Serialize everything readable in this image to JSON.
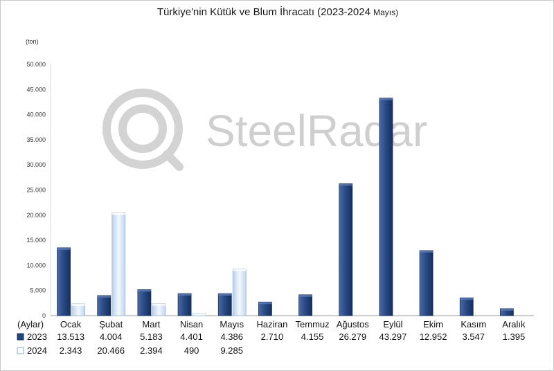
{
  "watermark": {
    "brand": "SteelRadar"
  },
  "chart_data": {
    "type": "bar",
    "title": "Türkiye'nin Kütük ve Blum İhracatı (2023-2024",
    "title_suffix": "Mayıs)",
    "ylabel": "(ton)",
    "xlabel": "(Aylar)",
    "ylim": [
      0,
      50000
    ],
    "yticks": [
      {
        "value": 0,
        "label": "0"
      },
      {
        "value": 5000,
        "label": "5.000"
      },
      {
        "value": 10000,
        "label": "10.000"
      },
      {
        "value": 15000,
        "label": "15.000"
      },
      {
        "value": 20000,
        "label": "20.000"
      },
      {
        "value": 25000,
        "label": "25.000"
      },
      {
        "value": 30000,
        "label": "30.000"
      },
      {
        "value": 35000,
        "label": "35.000"
      },
      {
        "value": 40000,
        "label": "40.000"
      },
      {
        "value": 45000,
        "label": "45.000"
      },
      {
        "value": 50000,
        "label": "50.000"
      }
    ],
    "grid": false,
    "legend": "bottom-left",
    "categories": [
      "Ocak",
      "Şubat",
      "Mart",
      "Nisan",
      "Mayıs",
      "Haziran",
      "Temmuz",
      "Ağustos",
      "Eylül",
      "Ekim",
      "Kasım",
      "Aralık"
    ],
    "series": [
      {
        "name": "2023",
        "color": "#24457e",
        "values": [
          13513,
          4004,
          5183,
          4401,
          4386,
          2710,
          4155,
          26279,
          43297,
          12952,
          3547,
          1395
        ],
        "labels": [
          "13.513",
          "4.004",
          "5.183",
          "4.401",
          "4.386",
          "2.710",
          "4.155",
          "26.279",
          "43.297",
          "12.952",
          "3.547",
          "1.395"
        ]
      },
      {
        "name": "2024",
        "color": "#cfe0f4",
        "values": [
          2343,
          20466,
          2394,
          490,
          9285,
          null,
          null,
          null,
          null,
          null,
          null,
          null
        ],
        "labels": [
          "2.343",
          "20.466",
          "2.394",
          "490",
          "9.285",
          "",
          "",
          "",
          "",
          "",
          "",
          ""
        ]
      }
    ]
  }
}
